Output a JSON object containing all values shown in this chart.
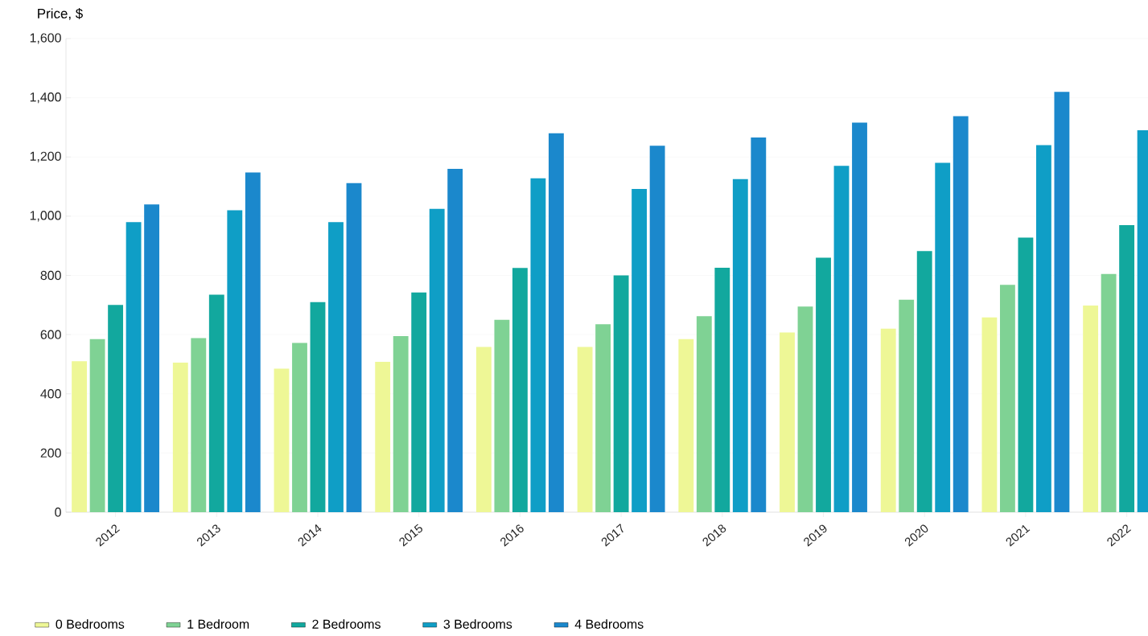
{
  "chart_data": {
    "type": "bar",
    "ylabel": "Price, $",
    "categories": [
      "2012",
      "2013",
      "2014",
      "2015",
      "2016",
      "2017",
      "2018",
      "2019",
      "2020",
      "2021",
      "2022"
    ],
    "series": [
      {
        "name": "0 Bedrooms",
        "color": "#eef796",
        "values": [
          510,
          505,
          485,
          508,
          558,
          558,
          585,
          607,
          620,
          658,
          698
        ]
      },
      {
        "name": "1 Bedroom",
        "color": "#7fd294",
        "values": [
          585,
          588,
          572,
          595,
          650,
          635,
          662,
          695,
          718,
          768,
          805
        ]
      },
      {
        "name": "2 Bedrooms",
        "color": "#12a89e",
        "values": [
          700,
          735,
          710,
          742,
          825,
          800,
          826,
          860,
          882,
          928,
          970
        ]
      },
      {
        "name": "3 Bedrooms",
        "color": "#0f9ec6",
        "values": [
          980,
          1020,
          980,
          1025,
          1128,
          1092,
          1125,
          1170,
          1180,
          1240,
          1290
        ]
      },
      {
        "name": "4 Bedrooms",
        "color": "#1b88cc",
        "values": [
          1040,
          1148,
          1112,
          1160,
          1280,
          1238,
          1266,
          1316,
          1338,
          1420,
          null
        ]
      }
    ],
    "ylim": [
      0,
      1600
    ],
    "yticks": [
      0,
      200,
      400,
      600,
      800,
      {
        "value": 1000,
        "label": "1,000"
      },
      {
        "value": 1200,
        "label": "1,200"
      },
      {
        "value": 1400,
        "label": "1,400"
      },
      {
        "value": 1600,
        "label": "1,600"
      }
    ],
    "grid": "y",
    "legend": "bottom"
  }
}
